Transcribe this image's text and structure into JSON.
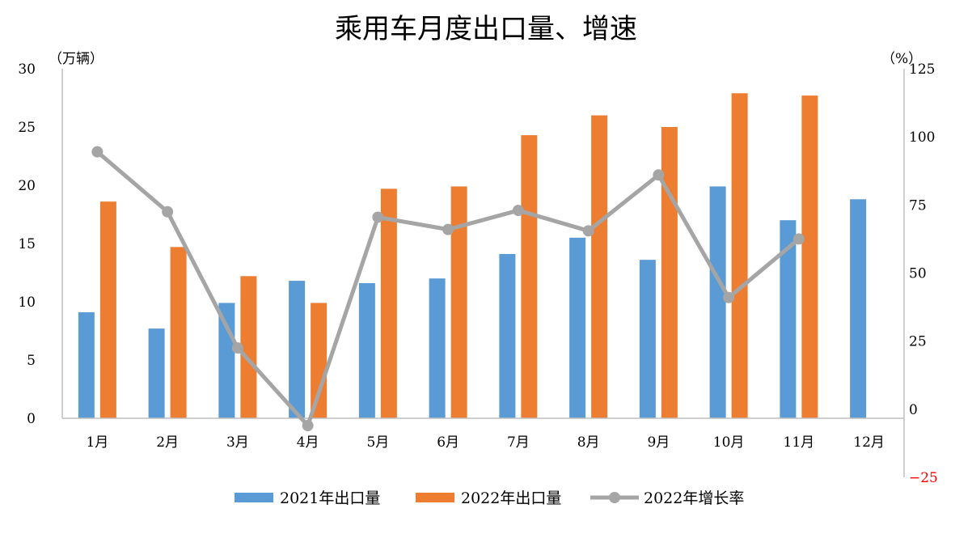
{
  "chart_data": {
    "type": "bar",
    "title": "乘用车月度出口量、增速",
    "left_unit": "（万辆）",
    "right_unit": "（%）",
    "categories": [
      "1月",
      "2月",
      "3月",
      "4月",
      "5月",
      "6月",
      "7月",
      "8月",
      "9月",
      "10月",
      "11月",
      "12月"
    ],
    "y_left": {
      "min": 0,
      "max": 30,
      "ticks": [
        "0",
        "5",
        "10",
        "15",
        "20",
        "25",
        "30"
      ]
    },
    "y_right": {
      "min": -25,
      "max": 125,
      "ticks": [
        {
          "value": -25,
          "label": "−25",
          "color": "#ff0000"
        },
        {
          "value": 0,
          "label": "0",
          "color": "#000000"
        },
        {
          "value": 25,
          "label": "25",
          "color": "#000000"
        },
        {
          "value": 50,
          "label": "50",
          "color": "#000000"
        },
        {
          "value": 75,
          "label": "75",
          "color": "#000000"
        },
        {
          "value": 100,
          "label": "100",
          "color": "#000000"
        },
        {
          "value": 125,
          "label": "125",
          "color": "#000000"
        }
      ]
    },
    "series": [
      {
        "name": "2021年出口量",
        "type": "bar",
        "axis": "left",
        "color": "#5b9bd5",
        "values": [
          9.1,
          7.7,
          9.9,
          11.8,
          11.6,
          12.0,
          14.1,
          15.5,
          13.6,
          19.9,
          17.0,
          18.8
        ]
      },
      {
        "name": "2022年出口量",
        "type": "bar",
        "axis": "left",
        "color": "#ed7d31",
        "values": [
          18.6,
          14.7,
          12.2,
          9.9,
          19.7,
          19.9,
          24.3,
          26.0,
          25.0,
          27.9,
          27.7,
          null
        ]
      },
      {
        "name": "2022年增长率",
        "type": "line",
        "axis": "right",
        "color": "#a5a5a5",
        "values": [
          94.5,
          72.5,
          22.5,
          -6.0,
          70.5,
          66.0,
          73.0,
          65.5,
          86.0,
          41.0,
          62.5,
          null
        ]
      }
    ],
    "legend_position": "bottom",
    "grid": false
  }
}
